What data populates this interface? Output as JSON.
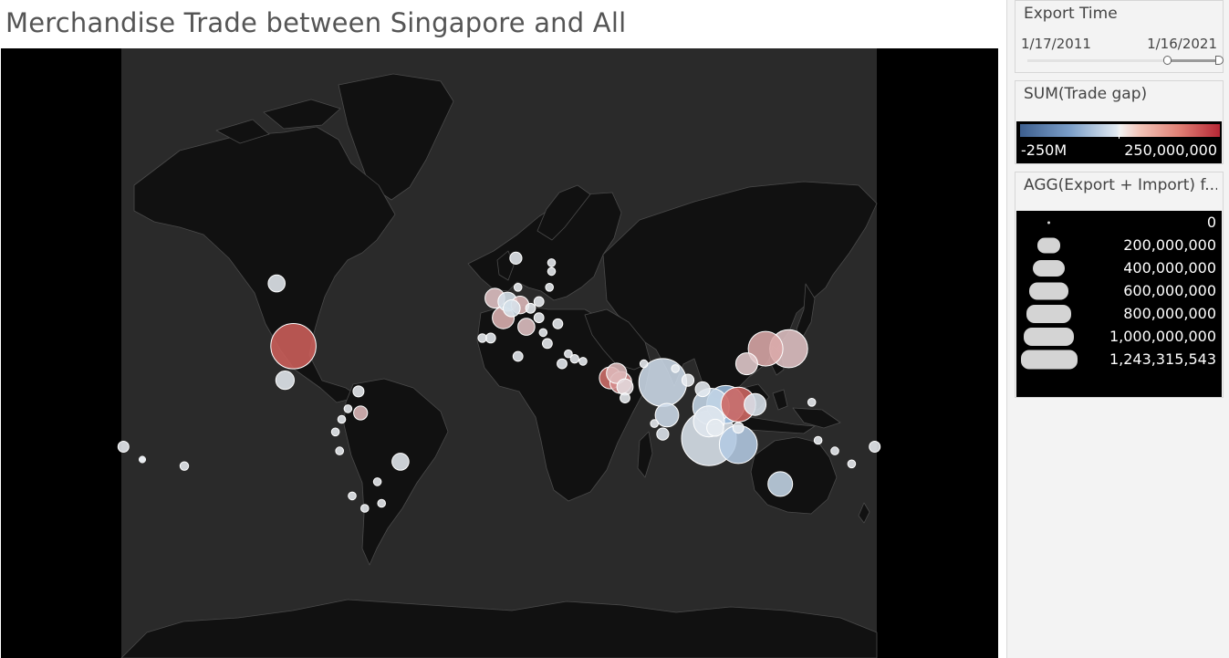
{
  "title": "Merchandise Trade between Singapore and All",
  "filters": {
    "export_time": {
      "title": "Export Time",
      "start": "1/17/2011",
      "end": "1/16/2021"
    }
  },
  "legends": {
    "trade_gap": {
      "title": "SUM(Trade gap)",
      "min_label": "-250M",
      "max_label": "250,000,000"
    },
    "size": {
      "title": "AGG(Export + Import) f...",
      "entries": [
        "0",
        "200,000,000",
        "400,000,000",
        "600,000,000",
        "800,000,000",
        "1,000,000,000",
        "1,243,315,543"
      ]
    }
  },
  "colors": {
    "negative": "#8fb4d9",
    "neutral": "#e8ecf0",
    "positive": "#c8453f"
  },
  "markers": [
    {
      "lon": -98,
      "lat": 37,
      "size": 850,
      "gap": 0.85
    },
    {
      "lon": -106,
      "lat": 57,
      "size": 120,
      "gap": -0.05
    },
    {
      "lon": -102,
      "lat": 23,
      "size": 140,
      "gap": -0.05
    },
    {
      "lon": -67,
      "lat": 18,
      "size": 50,
      "gap": 0
    },
    {
      "lon": -66,
      "lat": 8,
      "size": 80,
      "gap": 0.3
    },
    {
      "lon": -72,
      "lat": 10,
      "size": 25,
      "gap": 0
    },
    {
      "lon": -75,
      "lat": 5,
      "size": 25,
      "gap": 0
    },
    {
      "lon": -78,
      "lat": -1,
      "size": 25,
      "gap": 0
    },
    {
      "lon": -76,
      "lat": -10,
      "size": 25,
      "gap": 0
    },
    {
      "lon": -47,
      "lat": -15,
      "size": 120,
      "gap": -0.05
    },
    {
      "lon": -70,
      "lat": -30,
      "size": 25,
      "gap": 0
    },
    {
      "lon": -58,
      "lat": -24,
      "size": 25,
      "gap": 0
    },
    {
      "lon": -64,
      "lat": -35,
      "size": 25,
      "gap": 0
    },
    {
      "lon": -56,
      "lat": -33,
      "size": 25,
      "gap": 0
    },
    {
      "lon": -150,
      "lat": -17,
      "size": 30,
      "gap": 0
    },
    {
      "lon": -170,
      "lat": -14,
      "size": 20,
      "gap": 0
    },
    {
      "lon": -179,
      "lat": -8,
      "size": 50,
      "gap": 0
    },
    {
      "lon": 179,
      "lat": -8,
      "size": 50,
      "gap": 0
    },
    {
      "lon": 168,
      "lat": -16,
      "size": 25,
      "gap": 0
    },
    {
      "lon": 160,
      "lat": -10,
      "size": 25,
      "gap": 0
    },
    {
      "lon": 152,
      "lat": -5,
      "size": 25,
      "gap": 0
    },
    {
      "lon": 134,
      "lat": -25,
      "size": 250,
      "gap": -0.4
    },
    {
      "lon": 149,
      "lat": 13,
      "size": 25,
      "gap": 0
    },
    {
      "lon": 78,
      "lat": 22,
      "size": 950,
      "gap": -0.3
    },
    {
      "lon": 69,
      "lat": 30,
      "size": 25,
      "gap": 0
    },
    {
      "lon": 80,
      "lat": 7,
      "size": 230,
      "gap": -0.3
    },
    {
      "lon": 90,
      "lat": 23,
      "size": 60,
      "gap": 0
    },
    {
      "lon": 84,
      "lat": 28,
      "size": 25,
      "gap": 0
    },
    {
      "lon": 97,
      "lat": 19,
      "size": 90,
      "gap": -0.05
    },
    {
      "lon": 74,
      "lat": 3,
      "size": 25,
      "gap": 0
    },
    {
      "lon": 78,
      "lat": -2,
      "size": 60,
      "gap": -0.1
    },
    {
      "lon": 114,
      "lat": 12,
      "size": 500,
      "gap": 0.8
    },
    {
      "lon": 108,
      "lat": 12,
      "size": 600,
      "gap": -0.9
    },
    {
      "lon": 101,
      "lat": 11,
      "size": 550,
      "gap": -0.4
    },
    {
      "lon": 100,
      "lat": 4,
      "size": 400,
      "gap": -0.1
    },
    {
      "lon": 103,
      "lat": 1,
      "size": 120,
      "gap": -0.05
    },
    {
      "lon": 122,
      "lat": 12,
      "size": 200,
      "gap": -0.15
    },
    {
      "lon": 100,
      "lat": -4,
      "size": 1243,
      "gap": -0.15
    },
    {
      "lon": 114,
      "lat": -7,
      "size": 600,
      "gap": -0.6
    },
    {
      "lon": 114,
      "lat": 1,
      "size": 50,
      "gap": -0.05
    },
    {
      "lon": 118,
      "lat": 30,
      "size": 200,
      "gap": 0.2
    },
    {
      "lon": 127,
      "lat": 36,
      "size": 500,
      "gap": 0.4
    },
    {
      "lon": 138,
      "lat": 36,
      "size": 600,
      "gap": 0.25
    },
    {
      "lon": 53,
      "lat": 24,
      "size": 200,
      "gap": 0.75
    },
    {
      "lon": 56,
      "lat": 26,
      "size": 170,
      "gap": 0.3
    },
    {
      "lon": 58,
      "lat": 22,
      "size": 200,
      "gap": 0.55
    },
    {
      "lon": 60,
      "lat": 20,
      "size": 110,
      "gap": 0.1
    },
    {
      "lon": 60,
      "lat": 15,
      "size": 40,
      "gap": 0
    },
    {
      "lon": 40,
      "lat": 31,
      "size": 25,
      "gap": 0
    },
    {
      "lon": 36,
      "lat": 32,
      "size": 30,
      "gap": 0
    },
    {
      "lon": 33,
      "lat": 34,
      "size": 25,
      "gap": 0
    },
    {
      "lon": 30,
      "lat": 30,
      "size": 40,
      "gap": -0.02
    },
    {
      "lon": 9,
      "lat": 33,
      "size": 40,
      "gap": -0.02
    },
    {
      "lon": -4,
      "lat": 40,
      "size": 40,
      "gap": -0.02
    },
    {
      "lon": -8,
      "lat": 40,
      "size": 30,
      "gap": 0
    },
    {
      "lon": -2,
      "lat": 53,
      "size": 160,
      "gap": 0.25
    },
    {
      "lon": 4,
      "lat": 52,
      "size": 150,
      "gap": -0.2
    },
    {
      "lon": 6,
      "lat": 50,
      "size": 120,
      "gap": -0.2
    },
    {
      "lon": 2,
      "lat": 47,
      "size": 200,
      "gap": 0.35
    },
    {
      "lon": 10,
      "lat": 51,
      "size": 130,
      "gap": 0.3
    },
    {
      "lon": 13,
      "lat": 44,
      "size": 120,
      "gap": 0.25
    },
    {
      "lon": 9,
      "lat": 56,
      "size": 25,
      "gap": 0
    },
    {
      "lon": 8,
      "lat": 63,
      "size": 60,
      "gap": -0.02
    },
    {
      "lon": 15,
      "lat": 50,
      "size": 40,
      "gap": 0
    },
    {
      "lon": 19,
      "lat": 47,
      "size": 40,
      "gap": 0
    },
    {
      "lon": 19,
      "lat": 52,
      "size": 40,
      "gap": 0
    },
    {
      "lon": 24,
      "lat": 56,
      "size": 25,
      "gap": 0
    },
    {
      "lon": 25,
      "lat": 60,
      "size": 25,
      "gap": 0
    },
    {
      "lon": 21,
      "lat": 42,
      "size": 25,
      "gap": 0
    },
    {
      "lon": 23,
      "lat": 38,
      "size": 40,
      "gap": 0
    },
    {
      "lon": 28,
      "lat": 45,
      "size": 40,
      "gap": 0
    },
    {
      "lon": 25,
      "lat": 62,
      "size": 25,
      "gap": 0
    }
  ]
}
